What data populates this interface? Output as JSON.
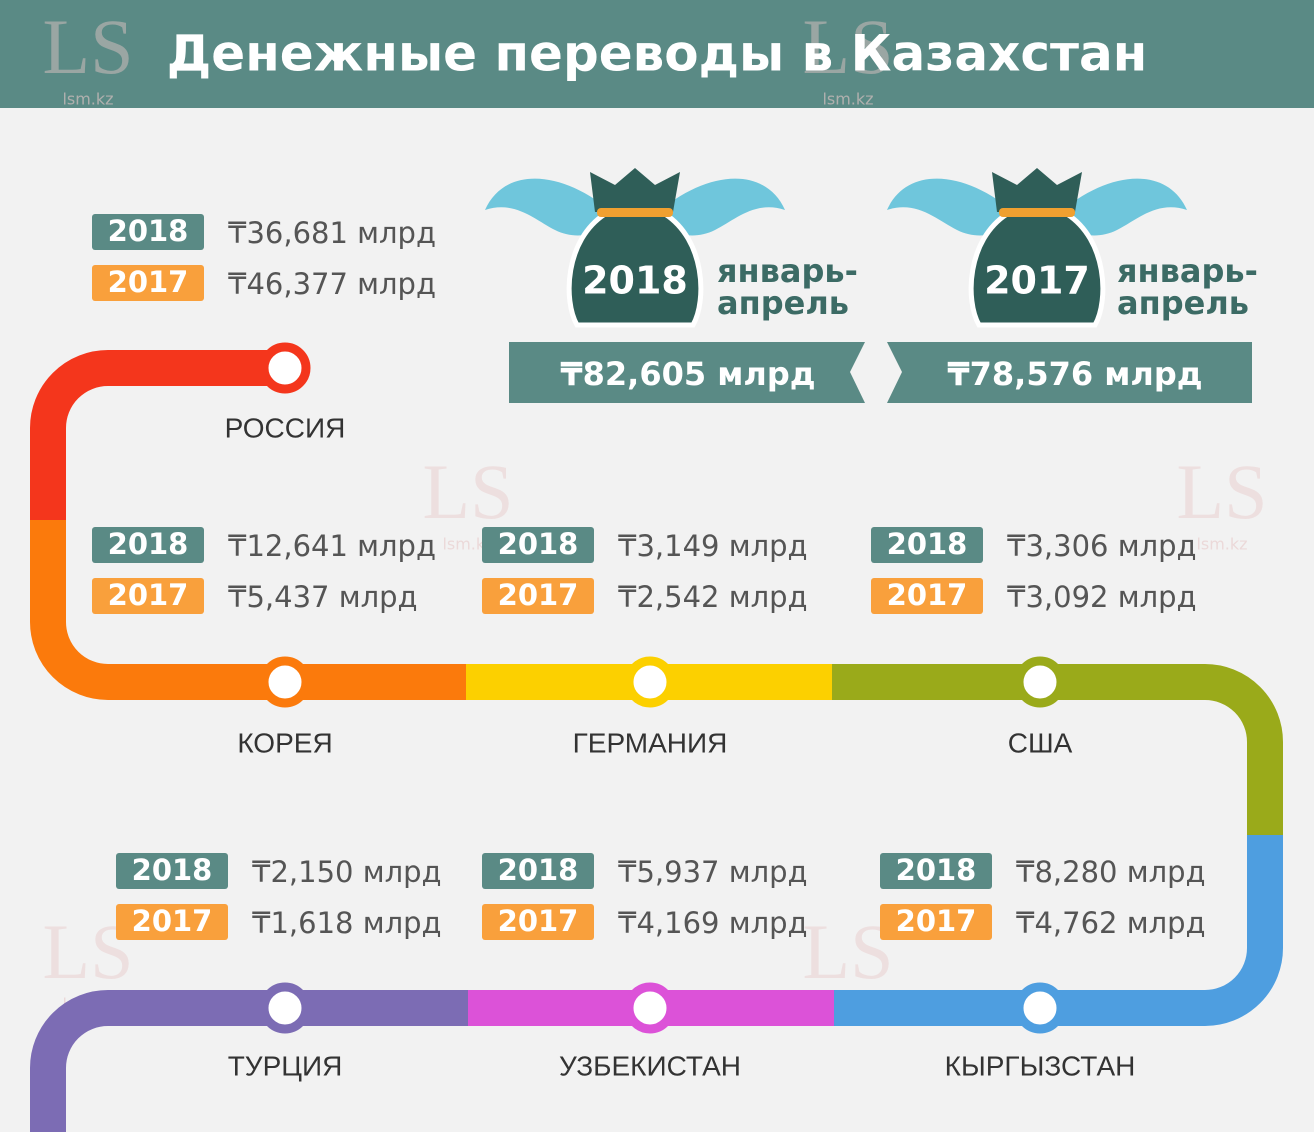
{
  "header": {
    "title": "Денежные переводы в Казахстан"
  },
  "watermark": {
    "logo": "LS",
    "site": "lsm.kz"
  },
  "summary": [
    {
      "year": "2018",
      "period": [
        "январь-",
        "апрель"
      ],
      "amount": "₸82,605 млрд"
    },
    {
      "year": "2017",
      "period": [
        "январь-",
        "апрель"
      ],
      "amount": "₸78,576 млрд"
    }
  ],
  "countries": [
    {
      "name": "РОССИЯ",
      "rows": [
        {
          "year": "2018",
          "amount": "₸36,681 млрд"
        },
        {
          "year": "2017",
          "amount": "₸46,377 млрд"
        }
      ]
    },
    {
      "name": "КОРЕЯ",
      "rows": [
        {
          "year": "2018",
          "amount": "₸12,641 млрд"
        },
        {
          "year": "2017",
          "amount": "₸5,437 млрд"
        }
      ]
    },
    {
      "name": "ГЕРМАНИЯ",
      "rows": [
        {
          "year": "2018",
          "amount": "₸3,149 млрд"
        },
        {
          "year": "2017",
          "amount": "₸2,542 млрд"
        }
      ]
    },
    {
      "name": "США",
      "rows": [
        {
          "year": "2018",
          "amount": "₸3,306 млрд"
        },
        {
          "year": "2017",
          "amount": "₸3,092 млрд"
        }
      ]
    },
    {
      "name": "ТУРЦИЯ",
      "rows": [
        {
          "year": "2018",
          "amount": "₸2,150 млрд"
        },
        {
          "year": "2017",
          "amount": "₸1,618 млрд"
        }
      ]
    },
    {
      "name": "УЗБЕКИСТАН",
      "rows": [
        {
          "year": "2018",
          "amount": "₸5,937 млрд"
        },
        {
          "year": "2017",
          "amount": "₸4,169 млрд"
        }
      ]
    },
    {
      "name": "КЫРГЫЗСТАН",
      "rows": [
        {
          "year": "2018",
          "amount": "₸8,280 млрд"
        },
        {
          "year": "2017",
          "amount": "₸4,762 млрд"
        }
      ]
    }
  ]
}
